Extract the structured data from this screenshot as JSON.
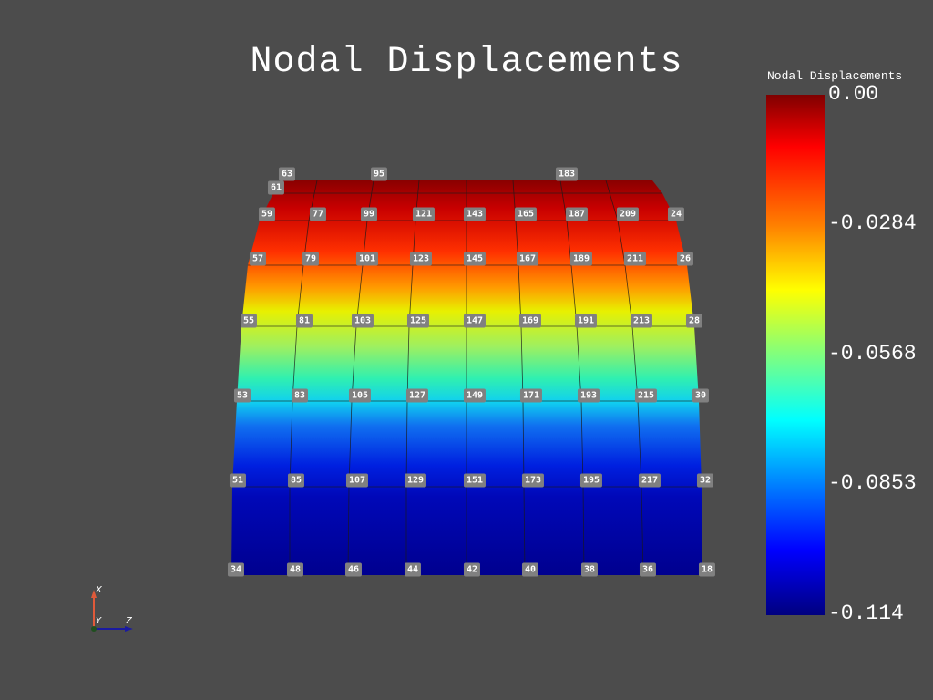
{
  "title": "Nodal Displacements",
  "colorbar": {
    "title": "Nodal Displacements",
    "ticks": [
      "0.00",
      "-0.0284",
      "-0.0568",
      "-0.0853",
      "-0.114"
    ]
  },
  "mesh_rows": [
    [
      "63",
      "95",
      "183"
    ],
    [
      "61"
    ],
    [
      "59",
      "77",
      "99",
      "121",
      "143",
      "165",
      "187",
      "209",
      "24"
    ],
    [
      "57",
      "79",
      "101",
      "123",
      "145",
      "167",
      "189",
      "211",
      "26"
    ],
    [
      "55",
      "81",
      "103",
      "125",
      "147",
      "169",
      "191",
      "213",
      "28"
    ],
    [
      "53",
      "83",
      "105",
      "127",
      "149",
      "171",
      "193",
      "215",
      "30"
    ],
    [
      "51",
      "85",
      "107",
      "129",
      "151",
      "173",
      "195",
      "217",
      "32"
    ],
    [
      "34",
      "48",
      "46",
      "44",
      "42",
      "40",
      "38",
      "36",
      "18"
    ]
  ],
  "axes": {
    "x": "X",
    "y": "Y",
    "z": "Z"
  },
  "colors": {
    "background": "#4c4c4c",
    "label_bg": "#808080",
    "x_axis": "#e05a3a",
    "z_axis": "#1a1aa0",
    "y_axis": "#1f4f1f"
  }
}
